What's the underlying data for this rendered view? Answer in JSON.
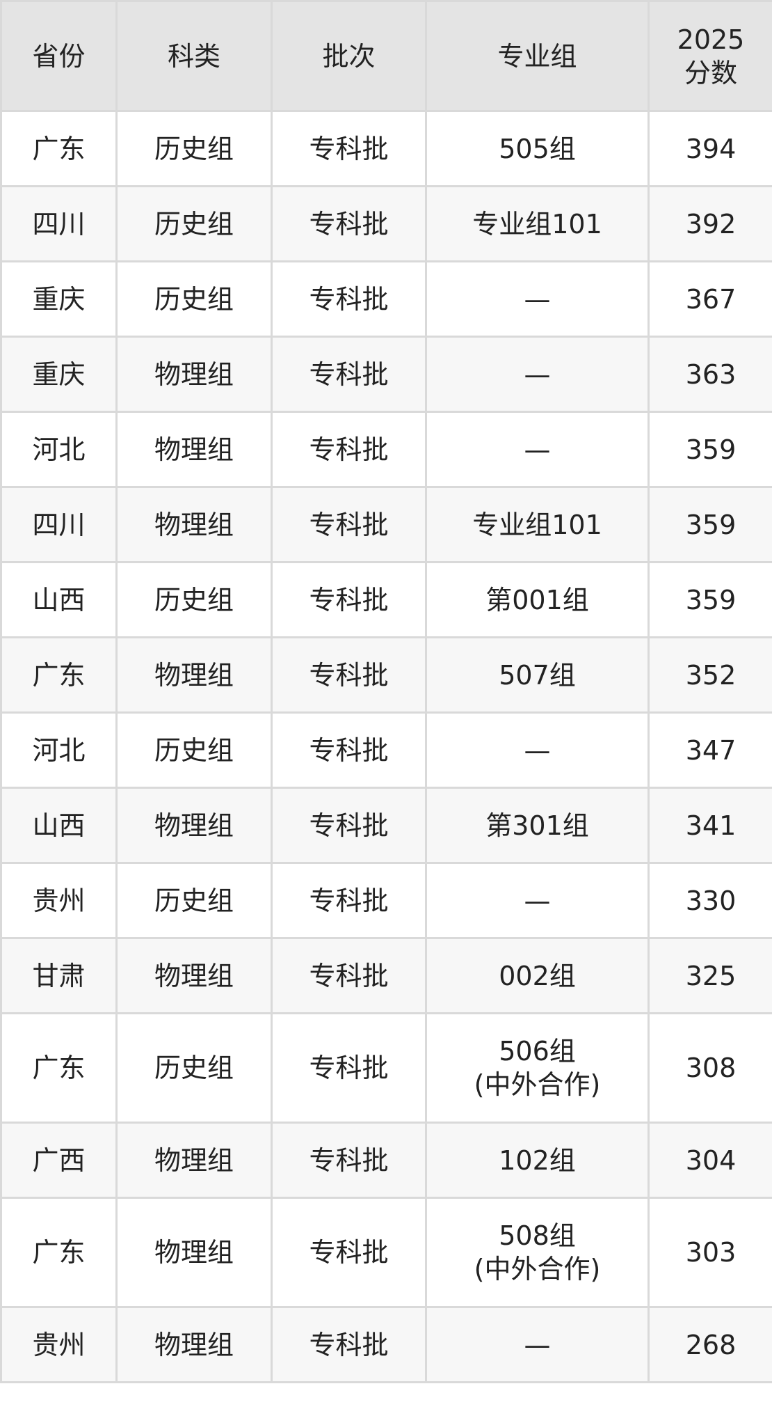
{
  "headers": [
    "省份",
    "科类",
    "批次",
    "专业组",
    "2025\n分数"
  ],
  "rows": [
    [
      "广东",
      "历史组",
      "专科批",
      "505组",
      "394"
    ],
    [
      "四川",
      "历史组",
      "专科批",
      "专业组101",
      "392"
    ],
    [
      "重庆",
      "历史组",
      "专科批",
      "—",
      "367"
    ],
    [
      "重庆",
      "物理组",
      "专科批",
      "—",
      "363"
    ],
    [
      "河北",
      "物理组",
      "专科批",
      "—",
      "359"
    ],
    [
      "四川",
      "物理组",
      "专科批",
      "专业组101",
      "359"
    ],
    [
      "山西",
      "历史组",
      "专科批",
      "第001组",
      "359"
    ],
    [
      "广东",
      "物理组",
      "专科批",
      "507组",
      "352"
    ],
    [
      "河北",
      "历史组",
      "专科批",
      "—",
      "347"
    ],
    [
      "山西",
      "物理组",
      "专科批",
      "第301组",
      "341"
    ],
    [
      "贵州",
      "历史组",
      "专科批",
      "—",
      "330"
    ],
    [
      "甘肃",
      "物理组",
      "专科批",
      "002组",
      "325"
    ],
    [
      "广东",
      "历史组",
      "专科批",
      "506组\n(中外合作)",
      "308"
    ],
    [
      "广西",
      "物理组",
      "专科批",
      "102组",
      "304"
    ],
    [
      "广东",
      "物理组",
      "专科批",
      "508组\n(中外合作)",
      "303"
    ],
    [
      "贵州",
      "物理组",
      "专科批",
      "—",
      "268"
    ]
  ]
}
